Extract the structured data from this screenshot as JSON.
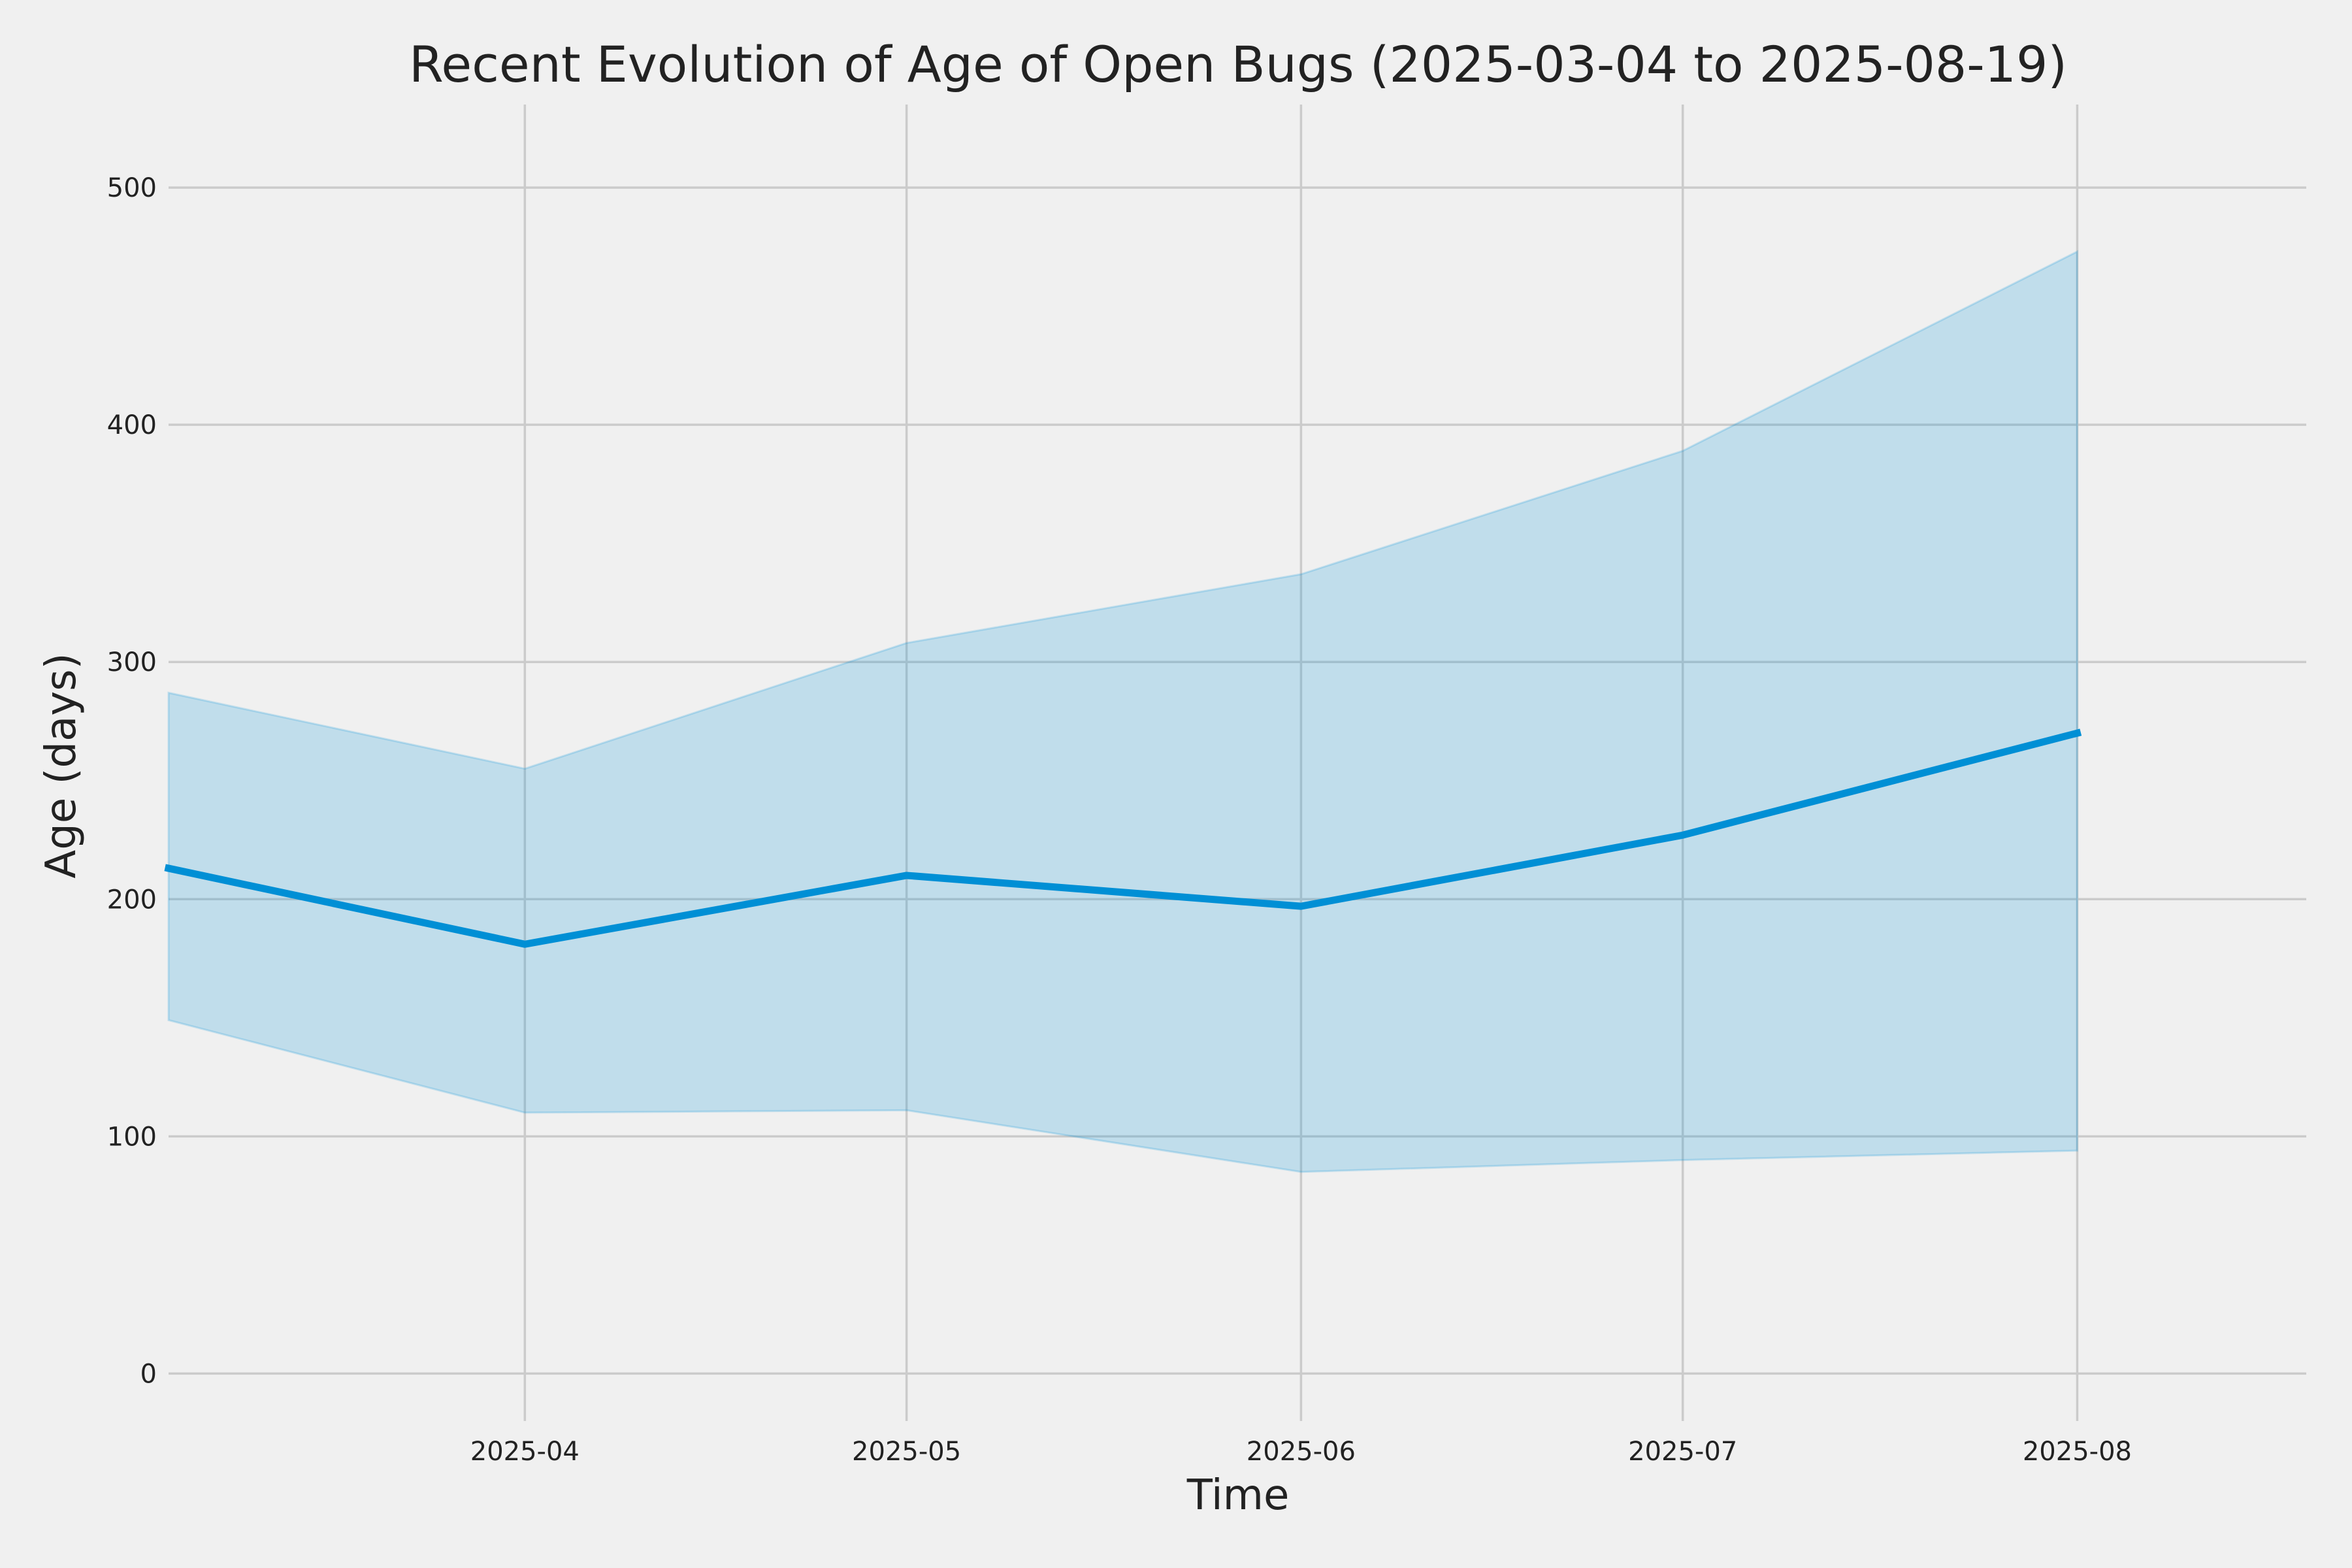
{
  "chart_data": {
    "type": "area",
    "title": "Recent Evolution of Age of Open Bugs (2025-03-04 to 2025-08-19)",
    "xlabel": "Time",
    "ylabel": "Age (days)",
    "x": [
      "2025-03-04",
      "2025-04-01",
      "2025-05-01",
      "2025-06-01",
      "2025-07-01",
      "2025-08-01"
    ],
    "xlim": [
      "2025-03-04",
      "2025-08-19"
    ],
    "ylim": [
      -20,
      535
    ],
    "x_ticks": [
      "2025-04",
      "2025-05",
      "2025-06",
      "2025-07",
      "2025-08"
    ],
    "x_tick_dates": [
      "2025-04-01",
      "2025-05-01",
      "2025-06-01",
      "2025-07-01",
      "2025-08-01"
    ],
    "y_ticks": [
      0,
      100,
      200,
      300,
      400,
      500
    ],
    "grid": true,
    "series": [
      {
        "values": [
          213,
          181,
          210,
          197,
          227,
          270
        ],
        "color": "#008fd5"
      },
      {
        "kind": "band",
        "lower": [
          149,
          110,
          111,
          85,
          90,
          94
        ],
        "upper": [
          287,
          255,
          308,
          337,
          389,
          473
        ],
        "color": "#008fd5"
      }
    ]
  }
}
